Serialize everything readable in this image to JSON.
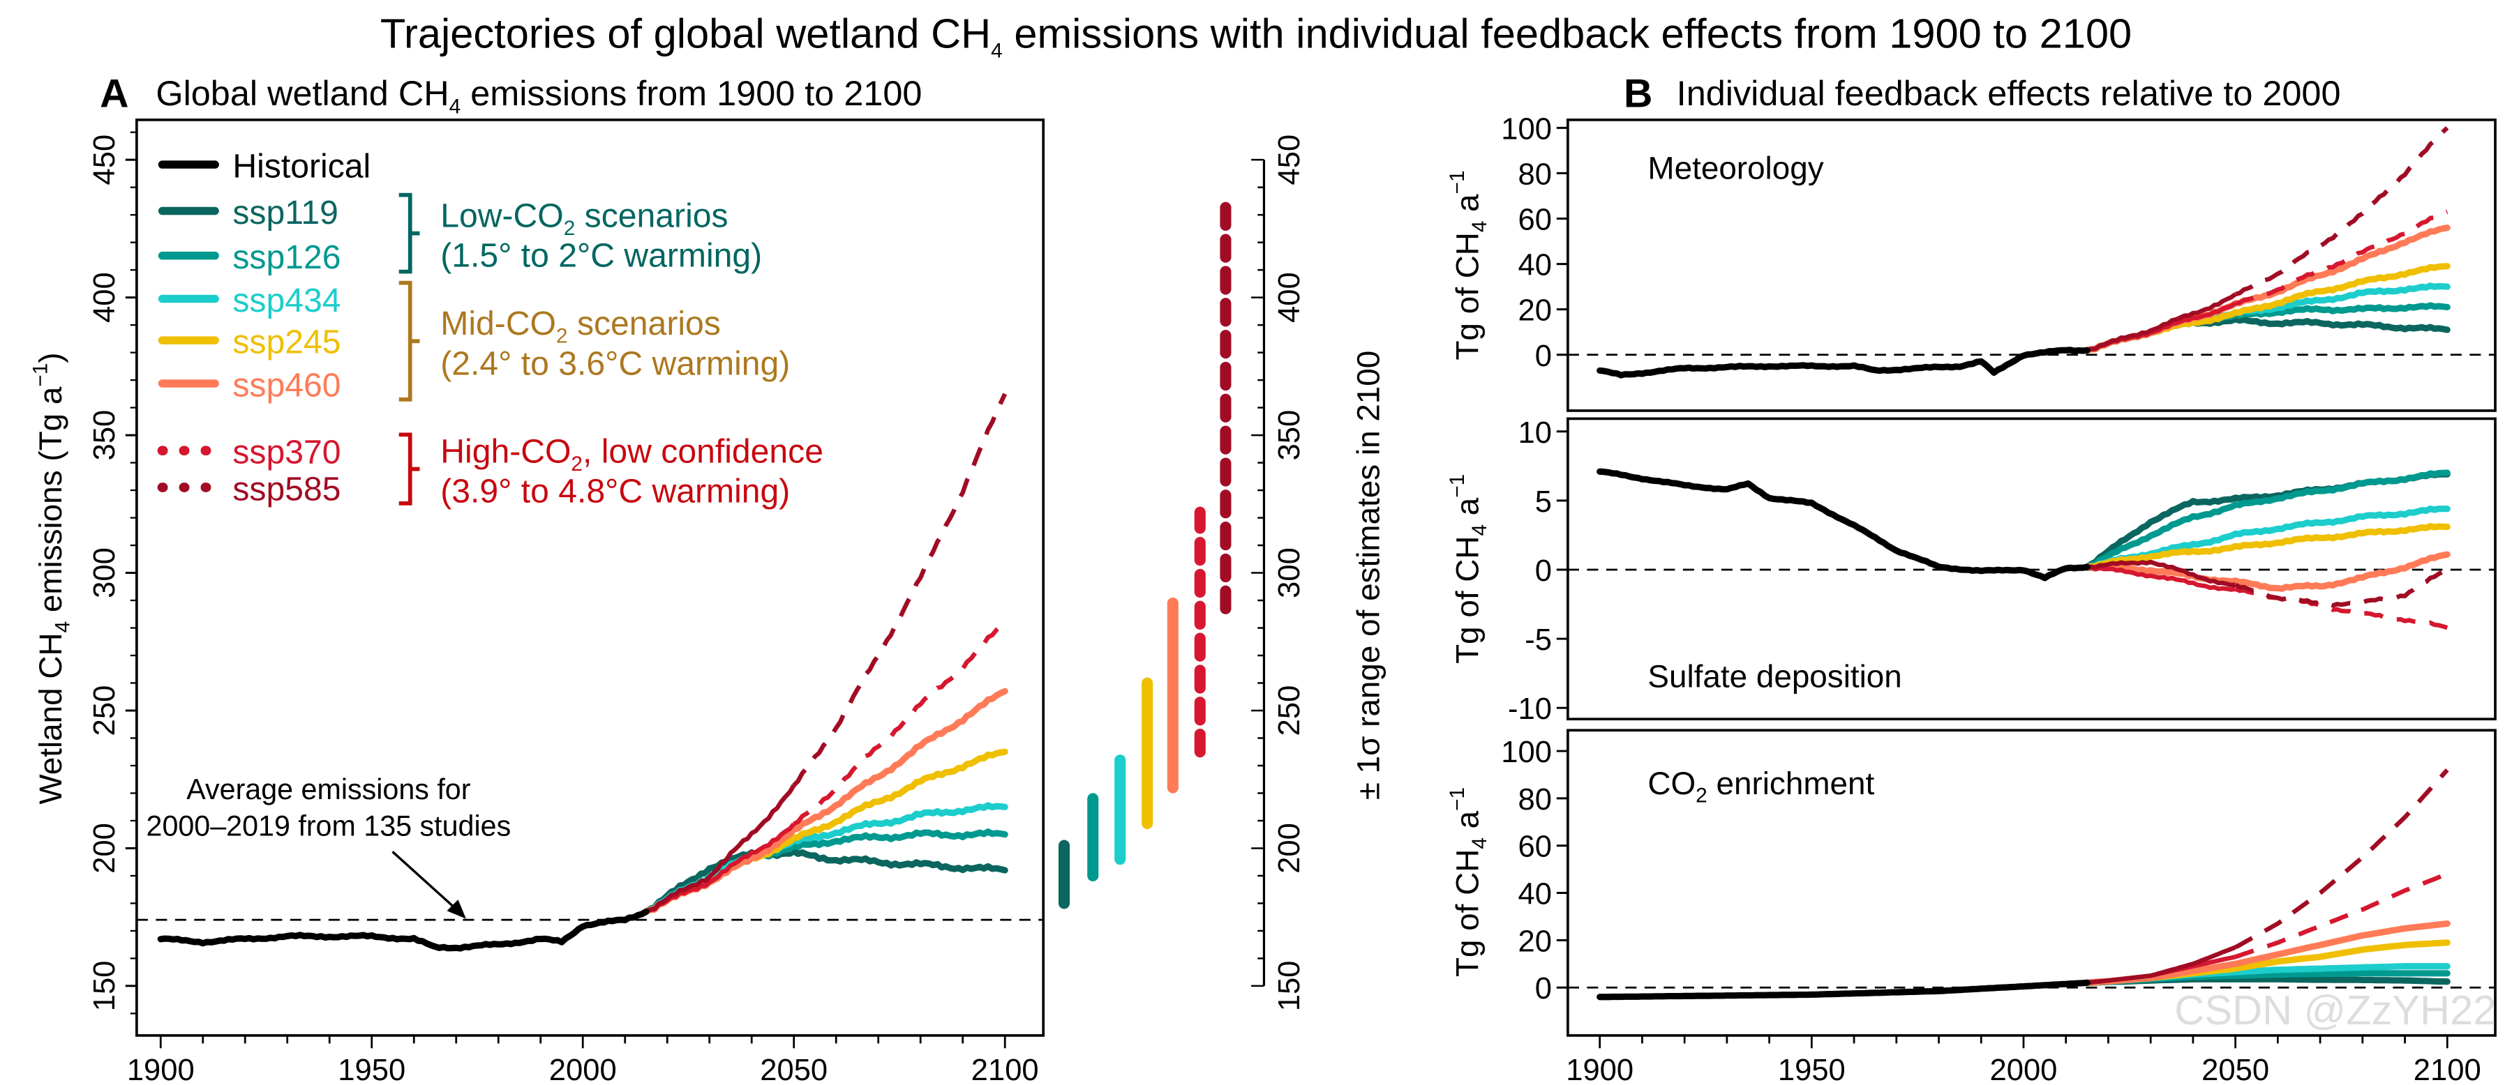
{
  "title": {
    "pre": "Trajectories of global wetland CH",
    "sub": "4",
    "post": " emissions with individual feedback effects from 1900 to 2100"
  },
  "watermark": "CSDN @ZzYH22",
  "series_styles": {
    "Historical": {
      "color": "#000000",
      "dash": "solid"
    },
    "ssp119": {
      "color": "#0b665f",
      "dash": "solid"
    },
    "ssp126": {
      "color": "#00998f",
      "dash": "solid"
    },
    "ssp434": {
      "color": "#1ccdcc",
      "dash": "solid"
    },
    "ssp245": {
      "color": "#efbf00",
      "dash": "solid"
    },
    "ssp460": {
      "color": "#ff7b57",
      "dash": "solid"
    },
    "ssp370": {
      "color": "#d6172f",
      "dash": "dashed"
    },
    "ssp585": {
      "color": "#a10c24",
      "dash": "dashed"
    }
  },
  "legend": {
    "items": [
      {
        "label": "Historical",
        "series": "Historical"
      },
      {
        "label": "ssp119",
        "series": "ssp119"
      },
      {
        "label": "ssp126",
        "series": "ssp126"
      },
      {
        "label": "ssp434",
        "series": "ssp434"
      },
      {
        "label": "ssp245",
        "series": "ssp245"
      },
      {
        "label": "ssp460",
        "series": "ssp460"
      },
      {
        "label": "ssp370",
        "series": "ssp370"
      },
      {
        "label": "ssp585",
        "series": "ssp585"
      }
    ],
    "groups": [
      {
        "line1_pre": "Low-CO",
        "line1_sub": "2",
        "line1_post": " scenarios",
        "line2": "(1.5° to 2°C warming)",
        "color": "#006660"
      },
      {
        "line1_pre": "Mid-CO",
        "line1_sub": "2",
        "line1_post": " scenarios",
        "line2": "(2.4° to 3.6°C warming)",
        "color": "#ac781f"
      },
      {
        "line1_pre": "High-CO",
        "line1_sub": "2",
        "line1_post": ", low confidence",
        "line2": "(3.9° to 4.8°C warming)",
        "color": "#c8070f"
      }
    ]
  },
  "chart_data": [
    {
      "type": "line",
      "panel_letter": "A",
      "title": {
        "pre": "Global wetland CH",
        "sub": "4",
        "post": " emissions from 1900 to 2100"
      },
      "ylabel": {
        "pre": "Wetland CH",
        "sub": "4",
        "mid": " emissions (Tg a",
        "sup": "−1",
        "post": ")"
      },
      "xlim": [
        1900,
        2100
      ],
      "ylim": [
        150,
        450
      ],
      "xticks": [
        1900,
        1950,
        2000,
        2050,
        2100
      ],
      "yticks": [
        150,
        200,
        250,
        300,
        350,
        400,
        450
      ],
      "reference_line": {
        "value": 174,
        "label": [
          "Average emissions for",
          "2000–2019 from 135 studies"
        ]
      },
      "historical": {
        "x": [
          1900,
          1910,
          1920,
          1930,
          1940,
          1950,
          1960,
          1965,
          1970,
          1980,
          1990,
          1995,
          2000,
          2010,
          2015
        ],
        "y": [
          167,
          166,
          167,
          168,
          168,
          168,
          167,
          164,
          164,
          165,
          167,
          166,
          172,
          174,
          177
        ]
      },
      "scenario_x": [
        2015,
        2030,
        2040,
        2050,
        2060,
        2070,
        2080,
        2090,
        2100
      ],
      "series": [
        {
          "name": "ssp119",
          "values": [
            177,
            193,
            198,
            198,
            196,
            195,
            194,
            193,
            192
          ]
        },
        {
          "name": "ssp126",
          "values": [
            177,
            190,
            197,
            200,
            203,
            204,
            205,
            205,
            205
          ]
        },
        {
          "name": "ssp434",
          "values": [
            177,
            190,
            197,
            202,
            206,
            209,
            212,
            214,
            215
          ]
        },
        {
          "name": "ssp245",
          "values": [
            177,
            188,
            196,
            203,
            210,
            217,
            224,
            230,
            235
          ]
        },
        {
          "name": "ssp460",
          "values": [
            177,
            188,
            196,
            206,
            216,
            226,
            237,
            247,
            257
          ]
        },
        {
          "name": "ssp370",
          "values": [
            177,
            188,
            198,
            208,
            222,
            237,
            252,
            266,
            282
          ]
        },
        {
          "name": "ssp585",
          "values": [
            177,
            190,
            205,
            222,
            244,
            270,
            298,
            330,
            365
          ]
        }
      ],
      "range_axis": {
        "label": "± 1σ range of estimates in 2100",
        "ylim": [
          150,
          450
        ],
        "yticks": [
          150,
          200,
          250,
          300,
          350,
          400,
          450
        ]
      },
      "range_bars": [
        {
          "name": "ssp119",
          "low": 180,
          "high": 201
        },
        {
          "name": "ssp126",
          "low": 190,
          "high": 218
        },
        {
          "name": "ssp434",
          "low": 196,
          "high": 232
        },
        {
          "name": "ssp245",
          "low": 209,
          "high": 260
        },
        {
          "name": "ssp460",
          "low": 222,
          "high": 289
        },
        {
          "name": "ssp370",
          "low": 235,
          "high": 322
        },
        {
          "name": "ssp585",
          "low": 287,
          "high": 437
        }
      ]
    },
    {
      "type": "line",
      "panel_letter": "B",
      "title": "Individual feedback effects relative to 2000",
      "label": {
        "pre": "Meteorology",
        "sub": "",
        "post": ""
      },
      "ylabel": {
        "pre": "Tg of CH",
        "sub": "4",
        "mid": " a",
        "sup": "−1",
        "post": ""
      },
      "xlim": [
        1900,
        2100
      ],
      "ylim": [
        -25,
        105
      ],
      "yticks": [
        0,
        20,
        40,
        60,
        80,
        100
      ],
      "historical": {
        "x": [
          1900,
          1905,
          1920,
          1940,
          1960,
          1965,
          1975,
          1985,
          1990,
          1993,
          2000,
          2010,
          2015
        ],
        "y": [
          -7,
          -9,
          -6,
          -5,
          -5,
          -7,
          -6,
          -5,
          -3,
          -8,
          0,
          2,
          2
        ]
      },
      "scenario_x": [
        2015,
        2030,
        2040,
        2050,
        2060,
        2070,
        2080,
        2090,
        2100
      ],
      "series": [
        {
          "name": "ssp119",
          "values": [
            2,
            10,
            14,
            15,
            14,
            14,
            13,
            12,
            11
          ]
        },
        {
          "name": "ssp126",
          "values": [
            2,
            10,
            15,
            17,
            19,
            20,
            20,
            21,
            21
          ]
        },
        {
          "name": "ssp434",
          "values": [
            2,
            10,
            15,
            18,
            21,
            24,
            27,
            29,
            30
          ]
        },
        {
          "name": "ssp245",
          "values": [
            2,
            10,
            14,
            18,
            23,
            28,
            32,
            36,
            39
          ]
        },
        {
          "name": "ssp460",
          "values": [
            2,
            10,
            16,
            22,
            28,
            35,
            42,
            50,
            56
          ]
        },
        {
          "name": "ssp370",
          "values": [
            2,
            10,
            16,
            22,
            29,
            37,
            45,
            54,
            63
          ]
        },
        {
          "name": "ssp585",
          "values": [
            2,
            11,
            18,
            26,
            36,
            48,
            62,
            80,
            100
          ]
        }
      ]
    },
    {
      "type": "line",
      "label": {
        "pre": "Sulfate deposition",
        "sub": "",
        "post": ""
      },
      "ylabel": {
        "pre": "Tg of CH",
        "sub": "4",
        "mid": " a",
        "sup": "−1",
        "post": ""
      },
      "xlim": [
        1900,
        2100
      ],
      "ylim": [
        -11,
        11
      ],
      "yticks": [
        -10,
        -5,
        0,
        5,
        10
      ],
      "historical": {
        "x": [
          1900,
          1910,
          1920,
          1930,
          1935,
          1940,
          1950,
          1960,
          1970,
          1980,
          1990,
          2000,
          2005,
          2010,
          2015
        ],
        "y": [
          7.1,
          6.6,
          6.1,
          5.8,
          6.2,
          5.2,
          4.8,
          3.2,
          1.4,
          0.2,
          -0.1,
          0,
          -0.6,
          0.1,
          0.2
        ]
      },
      "scenario_x": [
        2015,
        2030,
        2040,
        2050,
        2060,
        2070,
        2080,
        2090,
        2100
      ],
      "series": [
        {
          "name": "ssp119",
          "values": [
            0.2,
            3.5,
            4.9,
            5.1,
            5.4,
            5.8,
            6.2,
            6.6,
            6.9
          ]
        },
        {
          "name": "ssp126",
          "values": [
            0.2,
            2.5,
            3.8,
            4.6,
            5.2,
            5.7,
            6.2,
            6.6,
            7.0
          ]
        },
        {
          "name": "ssp434",
          "values": [
            0.2,
            1.2,
            1.8,
            2.5,
            3.0,
            3.4,
            3.8,
            4.1,
            4.4
          ]
        },
        {
          "name": "ssp245",
          "values": [
            0.2,
            1.0,
            1.3,
            1.6,
            2.0,
            2.3,
            2.6,
            2.9,
            3.1
          ]
        },
        {
          "name": "ssp460",
          "values": [
            0.2,
            0.0,
            -0.5,
            -0.9,
            -1.3,
            -1.2,
            -0.6,
            0.2,
            1.1
          ]
        },
        {
          "name": "ssp370",
          "values": [
            0.2,
            -0.4,
            -1.0,
            -1.5,
            -2.0,
            -2.6,
            -3.2,
            -3.6,
            -4.2
          ]
        },
        {
          "name": "ssp585",
          "values": [
            0.2,
            0.6,
            -0.4,
            -1.2,
            -2.0,
            -2.5,
            -2.4,
            -1.8,
            0.0
          ]
        }
      ]
    },
    {
      "type": "line",
      "label": {
        "pre": "CO",
        "sub": "2",
        "post": " enrichment"
      },
      "ylabel": {
        "pre": "Tg of CH",
        "sub": "4",
        "mid": " a",
        "sup": "−1",
        "post": ""
      },
      "xlim": [
        1900,
        2100
      ],
      "ylim": [
        -20,
        105
      ],
      "xticks": [
        1900,
        1950,
        2000,
        2050,
        2100
      ],
      "yticks": [
        0,
        20,
        40,
        60,
        80,
        100
      ],
      "historical": {
        "x": [
          1900,
          1950,
          1980,
          2000,
          2015
        ],
        "y": [
          -4,
          -3,
          -1.5,
          0.5,
          2
        ]
      },
      "scenario_x": [
        2015,
        2030,
        2040,
        2050,
        2060,
        2070,
        2080,
        2090,
        2100
      ],
      "series": [
        {
          "name": "ssp119",
          "values": [
            2,
            3,
            3.5,
            3.5,
            3.5,
            3.3,
            3.2,
            3,
            2.5
          ]
        },
        {
          "name": "ssp126",
          "values": [
            2,
            3.5,
            4.5,
            5,
            5.5,
            5.8,
            6,
            6,
            6
          ]
        },
        {
          "name": "ssp434",
          "values": [
            2,
            4,
            5.5,
            6.5,
            7.5,
            8,
            8.5,
            9,
            9
          ]
        },
        {
          "name": "ssp245",
          "values": [
            2,
            4,
            6,
            8,
            11,
            13,
            16,
            18,
            19
          ]
        },
        {
          "name": "ssp460",
          "values": [
            2,
            4,
            7,
            10,
            14,
            18,
            22,
            25,
            27
          ]
        },
        {
          "name": "ssp370",
          "values": [
            2,
            5,
            9,
            13,
            19,
            26,
            33,
            41,
            48
          ]
        },
        {
          "name": "ssp585",
          "values": [
            2,
            5,
            10,
            17,
            27,
            40,
            55,
            72,
            92
          ]
        }
      ]
    }
  ]
}
